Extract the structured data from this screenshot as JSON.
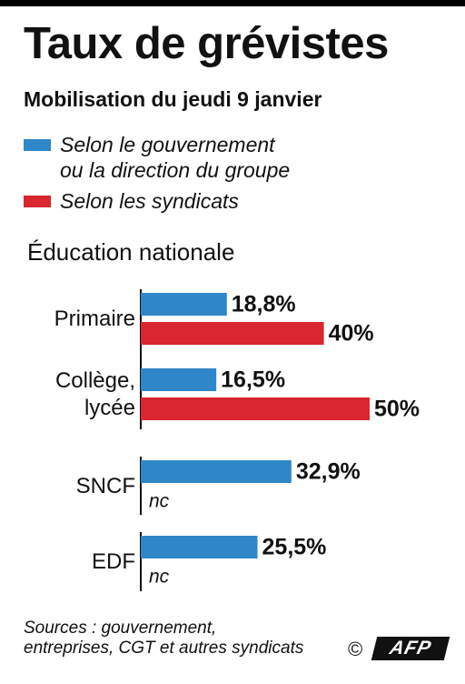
{
  "title": "Taux de grévistes",
  "subtitle": "Mobilisation du jeudi 9 janvier",
  "legend": [
    {
      "label": "Selon le gouvernement\nou la direction du groupe",
      "color": "#2f86c8"
    },
    {
      "label": "Selon les syndicats",
      "color": "#d9262f"
    }
  ],
  "section_label": "Éducation nationale",
  "chart_data": {
    "type": "bar",
    "orientation": "horizontal",
    "value_unit": "%",
    "grid": false,
    "legend_position": "top-left",
    "series": [
      {
        "name": "Selon le gouvernement ou la direction du groupe",
        "color": "#2f86c8"
      },
      {
        "name": "Selon les syndicats",
        "color": "#d9262f"
      }
    ],
    "groups": [
      {
        "category": "Primaire",
        "values": [
          18.8,
          40
        ],
        "value_labels": [
          "18,8%",
          "40%"
        ]
      },
      {
        "category": "Collège,\nlycée",
        "values": [
          16.5,
          50
        ],
        "value_labels": [
          "16,5%",
          "50%"
        ]
      },
      {
        "category": "SNCF",
        "values": [
          32.9,
          null
        ],
        "value_labels": [
          "32,9%",
          "nc"
        ]
      },
      {
        "category": "EDF",
        "values": [
          25.5,
          null
        ],
        "value_labels": [
          "25,5%",
          "nc"
        ]
      }
    ]
  },
  "sources": "Sources : gouvernement,\nentreprises, CGT et autres syndicats",
  "copyright_symbol": "©",
  "logo_text": "AFP"
}
